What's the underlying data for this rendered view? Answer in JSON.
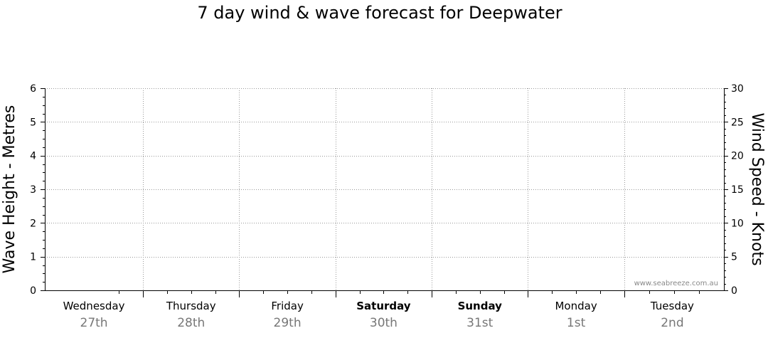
{
  "chart_data": {
    "type": "line",
    "title": "7 day wind & wave forecast for Deepwater",
    "ylabel_left": "Wave Height - Metres",
    "ylabel_right": "Wind Speed - Knots",
    "ylim_left": [
      0,
      6
    ],
    "ylim_right": [
      0,
      30
    ],
    "yticks_left": [
      0,
      1,
      2,
      3,
      4,
      5,
      6
    ],
    "yticks_right": [
      0,
      5,
      10,
      15,
      20,
      25,
      30
    ],
    "grid": true,
    "days": [
      {
        "name": "Wednesday",
        "date": "27th",
        "weekend": false
      },
      {
        "name": "Thursday",
        "date": "28th",
        "weekend": false
      },
      {
        "name": "Friday",
        "date": "29th",
        "weekend": false
      },
      {
        "name": "Saturday",
        "date": "30th",
        "weekend": true
      },
      {
        "name": "Sunday",
        "date": "31st",
        "weekend": true
      },
      {
        "name": "Monday",
        "date": "1st",
        "weekend": false
      },
      {
        "name": "Tuesday",
        "date": "2nd",
        "weekend": false
      }
    ],
    "series": [],
    "watermark": "www.seabreeze.com.au"
  }
}
